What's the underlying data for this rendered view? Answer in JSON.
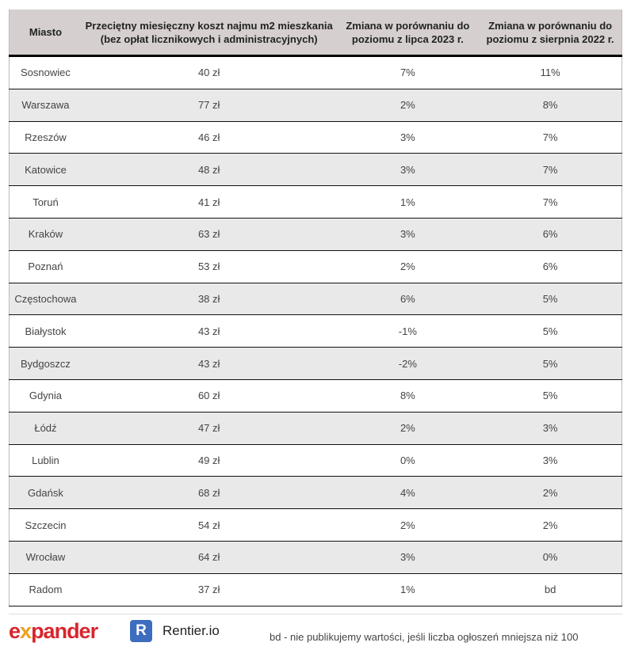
{
  "headers": [
    "Miasto",
    "Przeciętny miesięczny koszt najmu m2 mieszkania (bez opłat licznikowych i administracyjnych)",
    "Zmiana w porównaniu do poziomu z lipca 2023 r.",
    "Zmiana w porównaniu do poziomu z sierpnia 2022 r."
  ],
  "rows": [
    [
      "Sosnowiec",
      "40 zł",
      "7%",
      "11%"
    ],
    [
      "Warszawa",
      "77 zł",
      "2%",
      "8%"
    ],
    [
      "Rzeszów",
      "46 zł",
      "3%",
      "7%"
    ],
    [
      "Katowice",
      "48 zł",
      "3%",
      "7%"
    ],
    [
      "Toruń",
      "41 zł",
      "1%",
      "7%"
    ],
    [
      "Kraków",
      "63 zł",
      "3%",
      "6%"
    ],
    [
      "Poznań",
      "53 zł",
      "2%",
      "6%"
    ],
    [
      "Częstochowa",
      "38 zł",
      "6%",
      "5%"
    ],
    [
      "Białystok",
      "43 zł",
      "-1%",
      "5%"
    ],
    [
      "Bydgoszcz",
      "43 zł",
      "-2%",
      "5%"
    ],
    [
      "Gdynia",
      "60 zł",
      "8%",
      "5%"
    ],
    [
      "Łódź",
      "47 zł",
      "2%",
      "3%"
    ],
    [
      "Lublin",
      "49 zł",
      "0%",
      "3%"
    ],
    [
      "Gdańsk",
      "68 zł",
      "4%",
      "2%"
    ],
    [
      "Szczecin",
      "54 zł",
      "2%",
      "2%"
    ],
    [
      "Wrocław",
      "64 zł",
      "3%",
      "0%"
    ],
    [
      "Radom",
      "37 zł",
      "1%",
      "bd"
    ]
  ],
  "footer": {
    "logo_expander": "expander",
    "logo_rentier_icon": "R",
    "logo_rentier": "Rentier.io",
    "note": "bd - nie publikujemy wartości, jeśli liczba ogłoszeń mniejsza niż 100"
  },
  "colors": {
    "header_bg": "#d5cfcf",
    "alt_row_bg": "#e9e9e9",
    "expander_red": "#d8262e",
    "rentier_blue": "#3d6dbf"
  }
}
